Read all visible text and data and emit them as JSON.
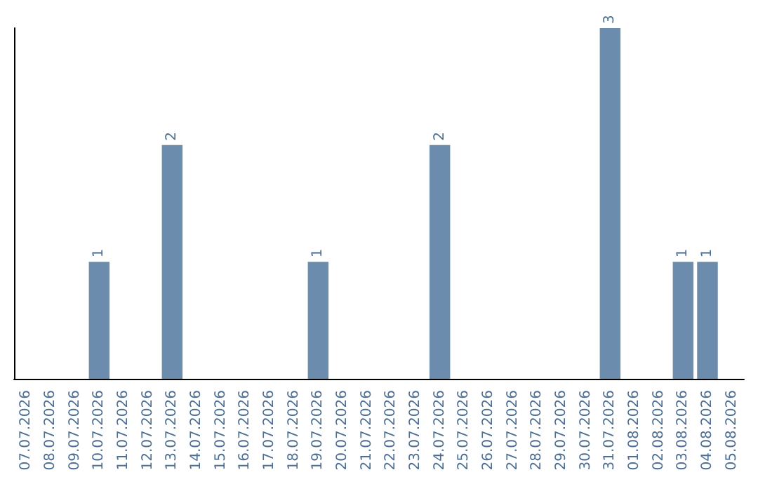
{
  "chart_data": {
    "type": "bar",
    "categories": [
      "07.07.2026",
      "08.07.2026",
      "09.07.2026",
      "10.07.2026",
      "11.07.2026",
      "12.07.2026",
      "13.07.2026",
      "14.07.2026",
      "15.07.2026",
      "16.07.2026",
      "17.07.2026",
      "18.07.2026",
      "19.07.2026",
      "20.07.2026",
      "21.07.2026",
      "22.07.2026",
      "23.07.2026",
      "24.07.2026",
      "25.07.2026",
      "26.07.2026",
      "27.07.2026",
      "28.07.2026",
      "29.07.2026",
      "30.07.2026",
      "31.07.2026",
      "01.08.2026",
      "02.08.2026",
      "03.08.2026",
      "04.08.2026",
      "05.08.2026"
    ],
    "values": [
      0,
      0,
      0,
      1,
      0,
      0,
      2,
      0,
      0,
      0,
      0,
      0,
      1,
      0,
      0,
      0,
      0,
      2,
      0,
      0,
      0,
      0,
      0,
      0,
      3,
      0,
      0,
      1,
      1,
      0
    ],
    "value_labels": [
      null,
      null,
      null,
      "1",
      null,
      null,
      "2",
      null,
      null,
      null,
      null,
      null,
      "1",
      null,
      null,
      null,
      null,
      "2",
      null,
      null,
      null,
      null,
      null,
      null,
      "3",
      null,
      null,
      "1",
      "1",
      null
    ],
    "color": "#6b8cad",
    "tick_labels": "x",
    "grid": false
  }
}
